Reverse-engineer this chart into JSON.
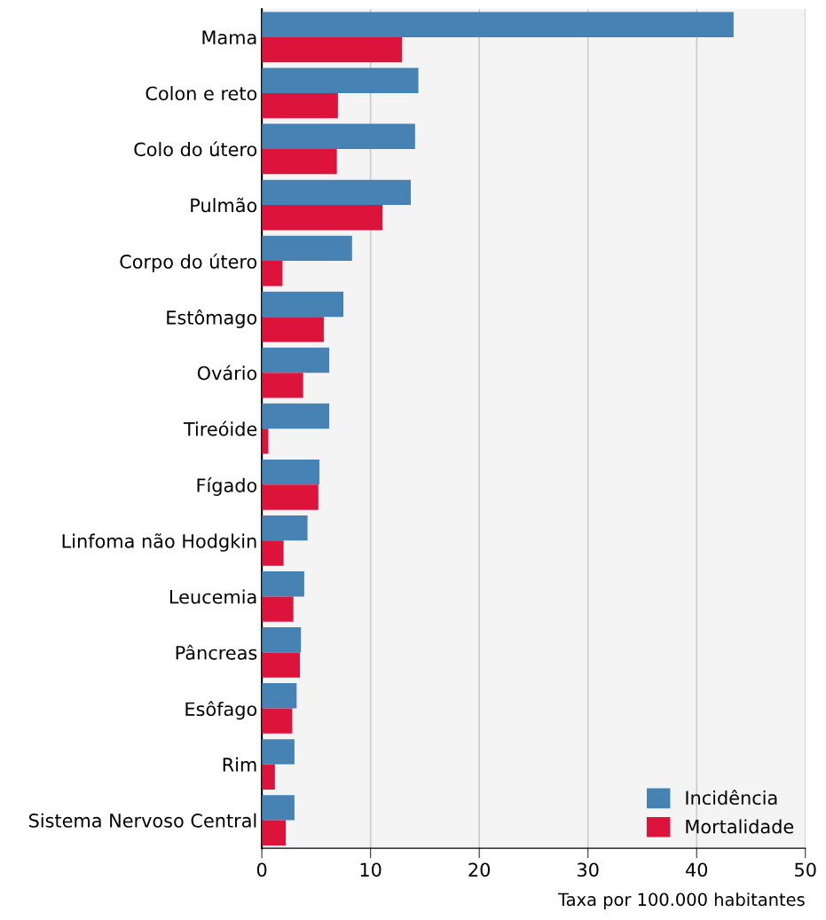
{
  "chart_data": {
    "type": "bar",
    "orientation": "horizontal",
    "xlabel": "Taxa por 100.000 habitantes",
    "categories": [
      "Mama",
      "Colon e reto",
      "Colo do útero",
      "Pulmão",
      "Corpo do útero",
      "Estômago",
      "Ovário",
      "Tireóide",
      "Fígado",
      "Linfoma não Hodgkin",
      "Leucemia",
      "Pâncreas",
      "Esôfago",
      "Rim",
      "Sistema Nervoso Central"
    ],
    "series": [
      {
        "name": "Incidência",
        "color": "#4682b4",
        "values": [
          43.4,
          14.4,
          14.1,
          13.7,
          8.3,
          7.5,
          6.2,
          6.2,
          5.3,
          4.2,
          3.9,
          3.6,
          3.2,
          3.0,
          3.0
        ]
      },
      {
        "name": "Mortalidade",
        "color": "#dc143c",
        "values": [
          12.9,
          7.0,
          6.9,
          11.1,
          1.9,
          5.7,
          3.8,
          0.6,
          5.2,
          2.0,
          2.9,
          3.5,
          2.8,
          1.2,
          2.2
        ]
      }
    ],
    "xlim": [
      0,
      50
    ],
    "xticks": [
      0,
      10,
      20,
      30,
      40,
      50
    ],
    "grid": "x",
    "legend": "bottom right"
  }
}
